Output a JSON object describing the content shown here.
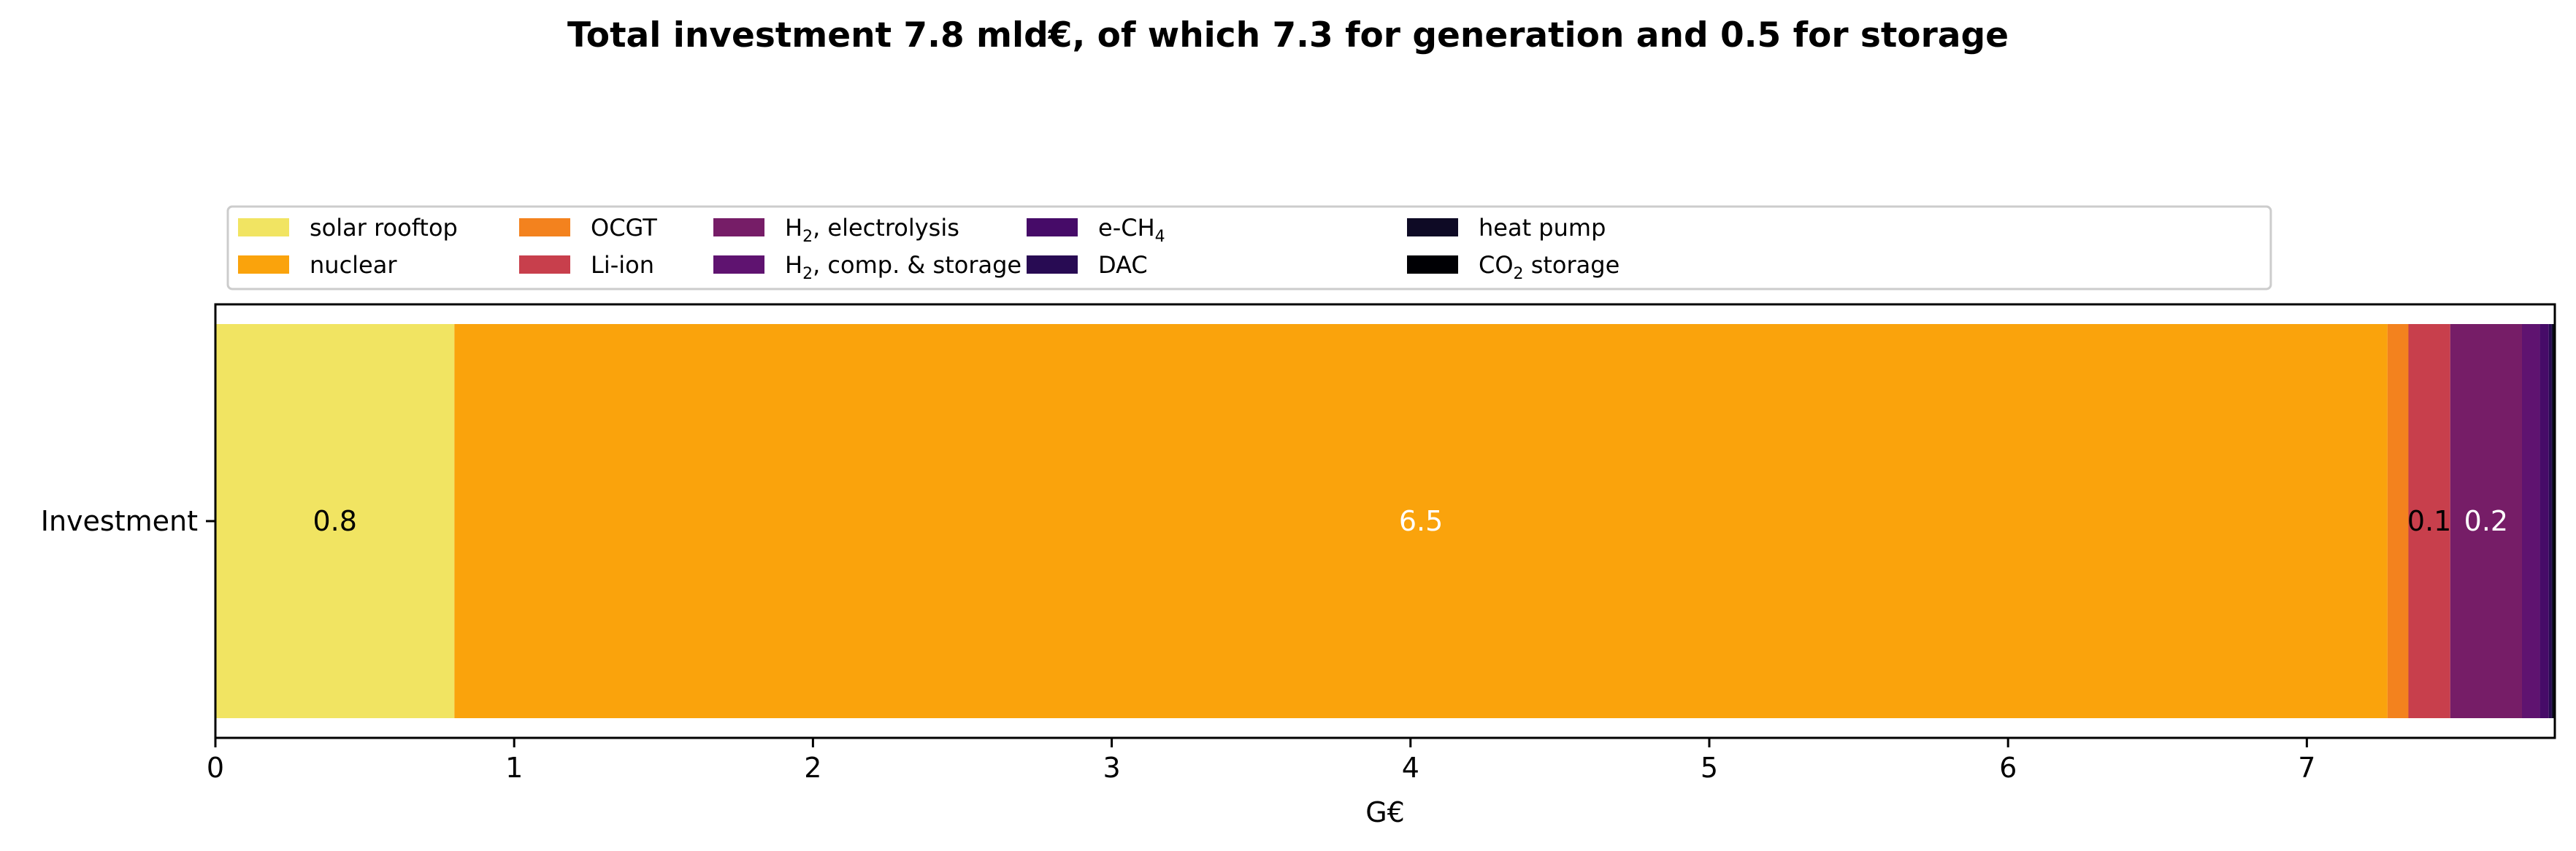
{
  "chart_data": {
    "type": "bar",
    "orientation": "horizontal",
    "stacked": true,
    "title": "Total investment 7.8 mld€, of which 7.3 for generation and 0.5 for storage",
    "xlabel": "G€",
    "ylabel": "",
    "categories": [
      "Investment"
    ],
    "xlim": [
      0,
      7.83
    ],
    "xticks": [
      0,
      1,
      2,
      3,
      4,
      5,
      6,
      7
    ],
    "grid": false,
    "legend_position": "top",
    "series": [
      {
        "name": "solar rooftop",
        "sub": "",
        "name_tail": "",
        "values": [
          0.8
        ],
        "color": "#f1e462",
        "label": "0.8",
        "label_color": "#000000"
      },
      {
        "name": "nuclear",
        "sub": "",
        "name_tail": "",
        "values": [
          6.47
        ],
        "color": "#faa30c",
        "label": "6.5",
        "label_color": "#ffffff"
      },
      {
        "name": "OCGT",
        "sub": "",
        "name_tail": "",
        "values": [
          0.07
        ],
        "color": "#f3821e",
        "label": "",
        "label_color": "#000000"
      },
      {
        "name": "Li-ion",
        "sub": "",
        "name_tail": "",
        "values": [
          0.14
        ],
        "color": "#c83f4c",
        "label": "0.1",
        "label_color": "#000000"
      },
      {
        "name": "H",
        "sub": "2",
        "name_tail": ", electrolysis",
        "values": [
          0.24
        ],
        "color": "#761d67",
        "label": "0.2",
        "label_color": "#ffffff"
      },
      {
        "name": "H",
        "sub": "2",
        "name_tail": ", comp. & storage",
        "values": [
          0.06
        ],
        "color": "#5f1370",
        "label": "",
        "label_color": "#ffffff"
      },
      {
        "name": "e-CH",
        "sub": "4",
        "name_tail": "",
        "values": [
          0.03
        ],
        "color": "#460b68",
        "label": "",
        "label_color": "#ffffff"
      },
      {
        "name": "DAC",
        "sub": "",
        "name_tail": "",
        "values": [
          0.01
        ],
        "color": "#280b53",
        "label": "",
        "label_color": "#ffffff"
      },
      {
        "name": "heat pump",
        "sub": "",
        "name_tail": "",
        "values": [
          0.005
        ],
        "color": "#0e0a25",
        "label": "",
        "label_color": "#ffffff"
      },
      {
        "name": "CO",
        "sub": "2",
        "name_tail": " storage",
        "values": [
          0.005
        ],
        "color": "#000004",
        "label": "",
        "label_color": "#ffffff"
      }
    ]
  }
}
